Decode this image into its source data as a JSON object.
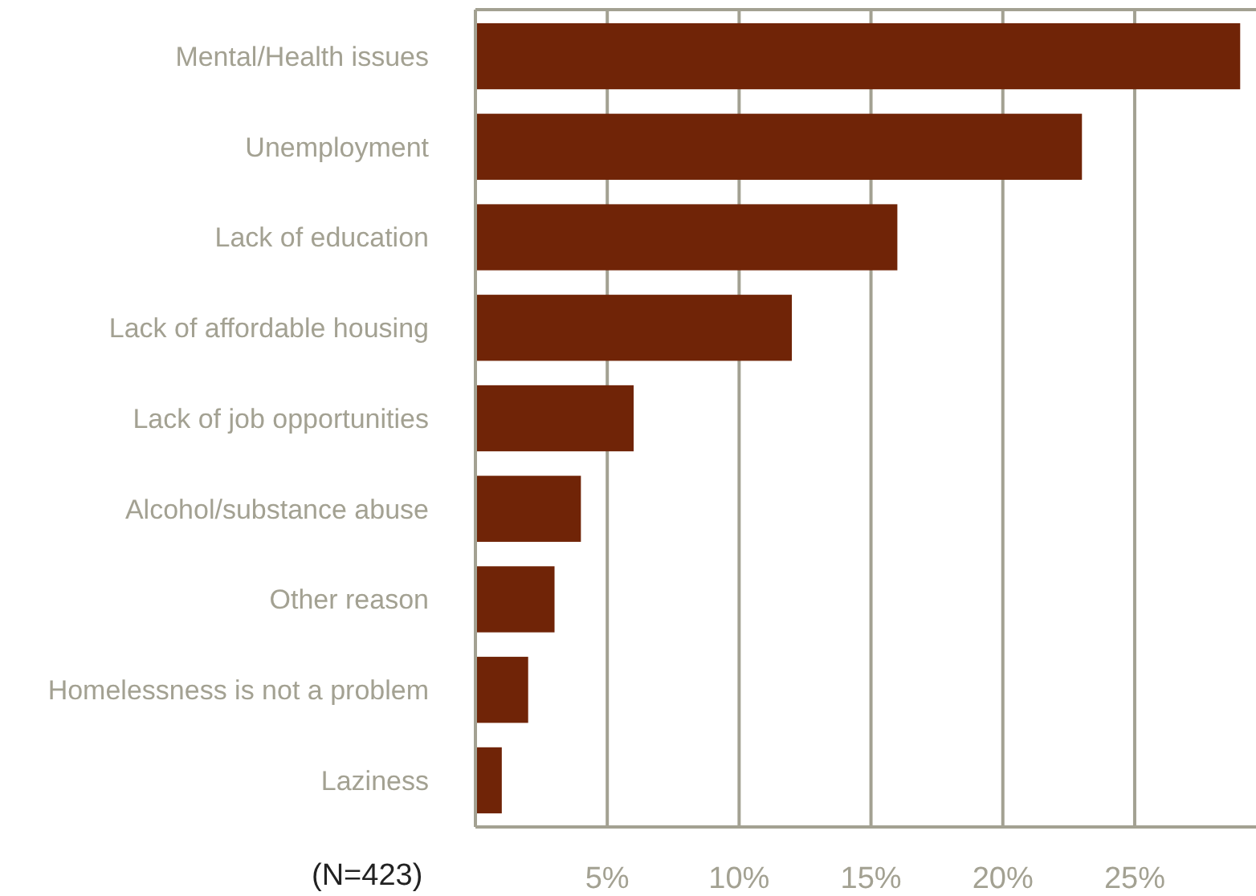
{
  "chart_data": {
    "type": "bar",
    "orientation": "horizontal",
    "categories": [
      "Mental/Health issues",
      "Unemployment",
      "Lack of education",
      "Lack of affordable housing",
      "Lack of job opportunities",
      "Alcohol/substance abuse",
      "Other reason",
      "Homelessness is not a problem",
      "Laziness"
    ],
    "values": [
      29,
      23,
      16,
      12,
      6,
      4,
      3,
      2,
      1
    ],
    "color": "#702407",
    "xlim": [
      0,
      29.6
    ],
    "xticks": [
      {
        "value": 5,
        "label": "5%"
      },
      {
        "value": 10,
        "label": "10%"
      },
      {
        "value": 15,
        "label": "15%"
      },
      {
        "value": 20,
        "label": "20%"
      },
      {
        "value": 25,
        "label": "25%"
      }
    ],
    "grid": "x",
    "annotations": [
      "(N=423)"
    ]
  }
}
